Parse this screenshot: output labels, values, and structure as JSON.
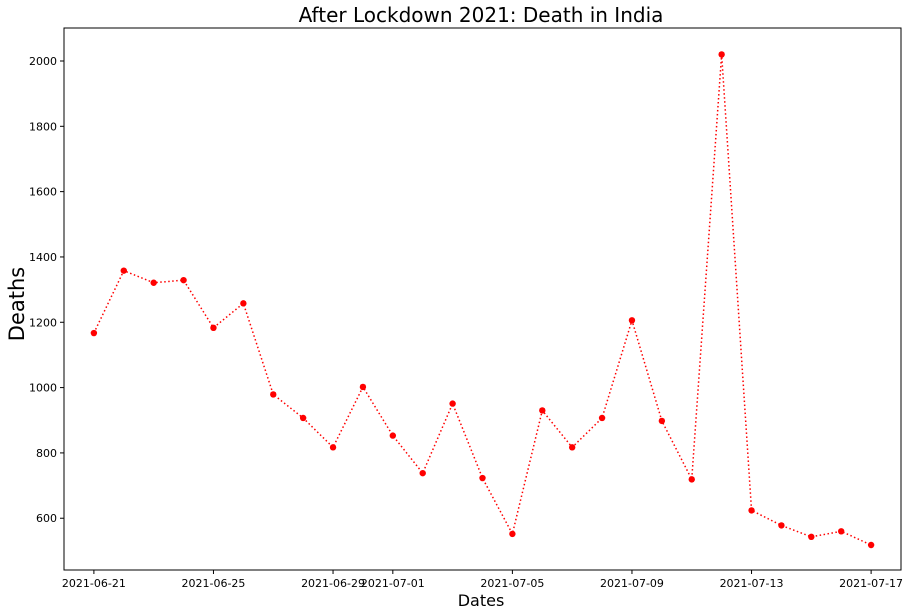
{
  "chart_data": {
    "type": "line",
    "title": "After Lockdown 2021: Death in India",
    "xlabel": "Dates",
    "ylabel": "Deaths",
    "x": [
      "2021-06-21",
      "2021-06-22",
      "2021-06-23",
      "2021-06-24",
      "2021-06-25",
      "2021-06-26",
      "2021-06-27",
      "2021-06-28",
      "2021-06-29",
      "2021-06-30",
      "2021-07-01",
      "2021-07-02",
      "2021-07-03",
      "2021-07-04",
      "2021-07-05",
      "2021-07-06",
      "2021-07-07",
      "2021-07-08",
      "2021-07-09",
      "2021-07-10",
      "2021-07-11",
      "2021-07-12",
      "2021-07-13",
      "2021-07-14",
      "2021-07-15",
      "2021-07-16",
      "2021-07-17"
    ],
    "series": [
      {
        "name": "",
        "values": [
          1167,
          1358,
          1321,
          1329,
          1183,
          1258,
          979,
          907,
          817,
          1002,
          853,
          738,
          951,
          723,
          552,
          930,
          817,
          907,
          1206,
          898,
          719,
          2020,
          624,
          578,
          543,
          560,
          518
        ],
        "color": "#ff0000",
        "line_style": "dotted",
        "marker": "circle"
      }
    ],
    "x_ticks": [
      "2021-06-21",
      "2021-06-25",
      "2021-06-29",
      "2021-07-01",
      "2021-07-05",
      "2021-07-09",
      "2021-07-13",
      "2021-07-17"
    ],
    "y_ticks": [
      600,
      800,
      1000,
      1200,
      1400,
      1600,
      1800,
      2000
    ],
    "xlim": [
      "2021-06-20",
      "2021-07-18"
    ],
    "ylim": [
      441.5,
      2101
    ],
    "grid": false,
    "legend": "none"
  }
}
